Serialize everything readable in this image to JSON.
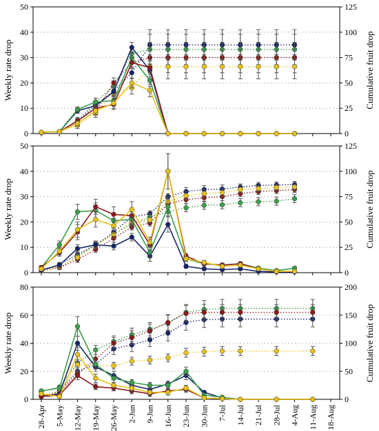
{
  "chart_data": [
    {
      "type": "line",
      "ylabel": "Weekly rate drop",
      "y2label": "Cumulative fruit drop",
      "ylim": [
        0,
        50
      ],
      "y2lim": [
        0,
        125
      ],
      "yticks": [
        "0",
        "10",
        "20",
        "30",
        "40",
        "50"
      ],
      "y2ticks": [
        "0",
        "25",
        "50",
        "75",
        "100",
        "125"
      ],
      "grid": "dotted",
      "x": [
        "28-Apr",
        "5-May",
        "12-May",
        "19-May",
        "26-May",
        "2-Jun",
        "9-Jun",
        "16-Jun",
        "23-Jun",
        "30-Jun",
        "7-Jul",
        "14-Jul",
        "21-Jul",
        "28-Jul",
        "4-Aug",
        "11-Aug",
        "18-Aug"
      ],
      "series": [
        {
          "color": "#16256b",
          "axis": "left",
          "style": "solid",
          "values": [
            0.5,
            0.8,
            9,
            11,
            16.5,
            34,
            25,
            0,
            0,
            0,
            0,
            0,
            0,
            0,
            0,
            null,
            null
          ],
          "errors": [
            0.3,
            0.3,
            1,
            1.5,
            2,
            2,
            2.5,
            0,
            0,
            0,
            0,
            0,
            0,
            0,
            0,
            null,
            null
          ]
        },
        {
          "color": "#3c9e4c",
          "axis": "left",
          "style": "solid",
          "values": [
            0.5,
            0.8,
            9.5,
            12.5,
            13,
            30,
            21,
            0,
            0,
            0,
            0,
            0,
            0,
            0,
            0,
            null,
            null
          ],
          "errors": [
            0.3,
            0.3,
            1,
            1.5,
            2,
            2,
            2.5,
            0,
            0,
            0,
            0,
            0,
            0,
            0,
            0,
            null,
            null
          ]
        },
        {
          "color": "#8b1a1a",
          "axis": "left",
          "style": "solid",
          "values": [
            0.5,
            0.8,
            5,
            10,
            11.5,
            28,
            26,
            0,
            0,
            0,
            0,
            0,
            0,
            0,
            0,
            null,
            null
          ],
          "errors": [
            0.3,
            0.3,
            1,
            1.5,
            2,
            2,
            2.5,
            0,
            0,
            0,
            0,
            0,
            0,
            0,
            0,
            null,
            null
          ]
        },
        {
          "color": "#e6c21a",
          "axis": "left",
          "style": "solid",
          "values": [
            0.5,
            0.8,
            4,
            9,
            12,
            20,
            17,
            0,
            0,
            0,
            0,
            0,
            0,
            0,
            0,
            null,
            null
          ],
          "errors": [
            0.3,
            0.3,
            1,
            1.5,
            2,
            2,
            2.5,
            0,
            0,
            0,
            0,
            0,
            0,
            0,
            0,
            null,
            null
          ]
        },
        {
          "color": "#16256b",
          "axis": "right",
          "style": "dotted",
          "values": [
            1,
            2,
            12,
            28,
            42,
            60,
            87.5,
            87.5,
            87.5,
            87.5,
            87.5,
            87.5,
            87.5,
            87.5,
            87.5,
            null,
            null
          ],
          "errors": [
            0.5,
            0.5,
            3,
            4,
            5,
            6,
            15,
            15,
            15,
            15,
            15,
            15,
            15,
            15,
            15,
            null,
            null
          ]
        },
        {
          "color": "#3c9e4c",
          "axis": "right",
          "style": "dotted",
          "values": [
            1,
            2,
            13,
            31,
            47,
            79,
            83,
            83,
            83,
            83,
            83,
            83,
            83,
            83,
            83,
            null,
            null
          ],
          "errors": [
            0.5,
            0.5,
            3,
            4,
            5,
            6,
            15,
            15,
            15,
            15,
            15,
            15,
            15,
            15,
            15,
            null,
            null
          ]
        },
        {
          "color": "#8b1a1a",
          "axis": "right",
          "style": "dotted",
          "values": [
            1,
            2,
            10,
            22,
            50,
            70,
            75,
            75,
            75,
            75,
            75,
            75,
            75,
            75,
            75,
            null,
            null
          ],
          "errors": [
            0.5,
            0.5,
            3,
            4,
            5,
            6,
            15,
            15,
            15,
            15,
            15,
            15,
            15,
            15,
            15,
            null,
            null
          ]
        },
        {
          "color": "#e6c21a",
          "axis": "right",
          "style": "dotted",
          "values": [
            1,
            2,
            8,
            20,
            40,
            45,
            66,
            66,
            66,
            66,
            66,
            66,
            66,
            66,
            66,
            null,
            null
          ],
          "errors": [
            0.5,
            0.5,
            3,
            4,
            5,
            6,
            12,
            12,
            12,
            12,
            12,
            12,
            12,
            12,
            12,
            null,
            null
          ]
        }
      ]
    },
    {
      "type": "line",
      "ylabel": "Weekly rate drop",
      "y2label": "Cumulative fruit drop",
      "ylim": [
        0,
        50
      ],
      "y2lim": [
        0,
        125
      ],
      "yticks": [
        "0",
        "10",
        "20",
        "30",
        "40",
        "50"
      ],
      "y2ticks": [
        "0",
        "25",
        "50",
        "75",
        "100",
        "125"
      ],
      "grid": "dotted",
      "x": [
        "28-Apr",
        "5-May",
        "12-May",
        "19-May",
        "26-May",
        "2-Jun",
        "9-Jun",
        "16-Jun",
        "23-Jun",
        "30-Jun",
        "7-Jul",
        "14-Jul",
        "21-Jul",
        "28-Jul",
        "4-Aug",
        "11-Aug",
        "18-Aug"
      ],
      "series": [
        {
          "color": "#16256b",
          "axis": "left",
          "style": "solid",
          "values": [
            1,
            3,
            9.5,
            11,
            10.5,
            14,
            6.5,
            19,
            2.5,
            1.5,
            1.2,
            1.5,
            0.5,
            0.3,
            0.3,
            null,
            null
          ],
          "errors": [
            0.5,
            1,
            1.5,
            1.5,
            1.5,
            1.5,
            2,
            3,
            0.8,
            0.5,
            0.5,
            0.5,
            0.3,
            0.3,
            0.3,
            null,
            null
          ]
        },
        {
          "color": "#3c9e4c",
          "axis": "left",
          "style": "solid",
          "values": [
            2,
            11,
            24,
            24.5,
            20.5,
            21,
            8,
            26,
            5.5,
            3.5,
            3,
            3.5,
            1.8,
            0.8,
            1.8,
            null,
            null
          ],
          "errors": [
            0.8,
            1.5,
            3,
            3,
            3,
            3,
            2,
            4,
            1,
            0.8,
            0.8,
            0.8,
            0.5,
            0.5,
            0.5,
            null,
            null
          ]
        },
        {
          "color": "#8b1a1a",
          "axis": "left",
          "style": "solid",
          "values": [
            2,
            8,
            16,
            26,
            23,
            22.5,
            11,
            40,
            6.5,
            3.5,
            3,
            3.5,
            1.5,
            0.5,
            0.5,
            null,
            null
          ],
          "errors": [
            0.8,
            1.5,
            3,
            3,
            3,
            3,
            2,
            7,
            1,
            0.8,
            0.8,
            0.8,
            0.5,
            0.5,
            0.5,
            null,
            null
          ]
        },
        {
          "color": "#e6c21a",
          "axis": "left",
          "style": "solid",
          "values": [
            1.5,
            8.5,
            17,
            21,
            18.5,
            25,
            12,
            40,
            5.5,
            4,
            2.5,
            3,
            1.5,
            0.5,
            0.5,
            null,
            null
          ],
          "errors": [
            0.8,
            1.5,
            3,
            3,
            3,
            3,
            2,
            7,
            1,
            0.8,
            0.8,
            0.8,
            0.5,
            0.5,
            0.5,
            null,
            null
          ]
        },
        {
          "color": "#16256b",
          "axis": "right",
          "style": "dotted",
          "values": [
            2,
            8,
            18,
            27,
            40,
            55,
            58,
            75,
            80,
            82,
            82.5,
            84.5,
            86,
            86.5,
            87,
            null,
            null
          ],
          "errors": [
            0.8,
            1.5,
            3,
            3,
            4,
            3,
            3,
            3,
            4,
            4,
            4,
            3,
            3,
            3,
            3,
            null,
            null
          ]
        },
        {
          "color": "#3c9e4c",
          "axis": "right",
          "style": "dotted",
          "values": [
            2,
            5,
            16,
            28,
            38,
            48,
            55,
            60,
            64,
            66.5,
            67,
            69,
            70,
            70.5,
            73,
            null,
            null
          ],
          "errors": [
            0.8,
            1.5,
            3,
            3,
            4,
            3,
            3,
            4,
            4,
            4,
            4,
            4,
            4,
            4,
            4,
            null,
            null
          ]
        },
        {
          "color": "#8b1a1a",
          "axis": "right",
          "style": "dotted",
          "values": [
            2,
            5,
            13,
            23,
            34,
            45,
            49,
            68,
            72,
            74,
            75,
            78,
            80,
            81,
            82,
            null,
            null
          ],
          "errors": [
            0.8,
            1.5,
            3,
            3,
            4,
            3,
            3,
            3,
            4,
            4,
            4,
            3,
            3,
            3,
            3,
            null,
            null
          ]
        },
        {
          "color": "#e6c21a",
          "axis": "right",
          "style": "dotted",
          "values": [
            2,
            6,
            15,
            27,
            38,
            50,
            52,
            70,
            76,
            78,
            79,
            82,
            83,
            84,
            84.5,
            null,
            null
          ],
          "errors": [
            0.8,
            1.5,
            3,
            3,
            4,
            3,
            3,
            3,
            4,
            4,
            4,
            3,
            3,
            3,
            3,
            null,
            null
          ]
        }
      ]
    },
    {
      "type": "line",
      "ylabel": "Weekly rate drop",
      "y2label": "Cumulative fruit drop",
      "ylim": [
        0,
        80
      ],
      "y2lim": [
        0,
        200
      ],
      "yticks": [
        "0",
        "20",
        "40",
        "60",
        "80"
      ],
      "y2ticks": [
        "0",
        "50",
        "100",
        "150",
        "200"
      ],
      "grid": "dotted",
      "x": [
        "28-Apr",
        "5-May",
        "12-May",
        "19-May",
        "26-May",
        "2-Jun",
        "9-Jun",
        "16-Jun",
        "23-Jun",
        "30-Jun",
        "7-Jul",
        "14-Jul",
        "21-Jul",
        "28-Jul",
        "4-Aug",
        "11-Aug",
        "18-Aug"
      ],
      "series": [
        {
          "color": "#16256b",
          "axis": "left",
          "style": "solid",
          "values": [
            2,
            4,
            40,
            23,
            17,
            10,
            7,
            11,
            17,
            5,
            1,
            0,
            null,
            0,
            null,
            0,
            null
          ],
          "errors": [
            0.8,
            1,
            5,
            3,
            3,
            2,
            2,
            2,
            3,
            1,
            0.5,
            0,
            null,
            0,
            null,
            0,
            null
          ]
        },
        {
          "color": "#3c9e4c",
          "axis": "left",
          "style": "solid",
          "values": [
            6,
            8,
            52,
            25,
            15,
            12,
            10,
            10,
            20,
            3,
            1.5,
            0,
            null,
            0,
            null,
            0,
            null
          ],
          "errors": [
            0.8,
            1,
            7,
            3,
            3,
            2,
            2,
            2,
            3,
            1,
            0.5,
            0,
            null,
            0,
            null,
            0,
            null
          ]
        },
        {
          "color": "#8b1a1a",
          "axis": "left",
          "style": "solid",
          "values": [
            2,
            3,
            17,
            9,
            8,
            6,
            4,
            6,
            7,
            1,
            0.5,
            0,
            null,
            0,
            null,
            0,
            null
          ],
          "errors": [
            0.8,
            1,
            3,
            2,
            2,
            2,
            2,
            2,
            2,
            1,
            0.5,
            0,
            null,
            0,
            null,
            0,
            null
          ]
        },
        {
          "color": "#e6c21a",
          "axis": "left",
          "style": "solid",
          "values": [
            4,
            2,
            32,
            15,
            10,
            8,
            5,
            5,
            8,
            1,
            0.5,
            0,
            null,
            0,
            null,
            0,
            null
          ],
          "errors": [
            0.8,
            1,
            5,
            3,
            2,
            2,
            2,
            2,
            2,
            1,
            0.5,
            0,
            null,
            0,
            null,
            0,
            null
          ]
        },
        {
          "color": "#16256b",
          "axis": "right",
          "style": "dotted",
          "values": [
            5,
            15,
            50,
            62,
            90,
            97,
            106,
            118,
            137,
            142,
            143,
            143,
            null,
            143,
            null,
            143,
            null
          ],
          "errors": [
            1,
            2,
            6,
            8,
            10,
            12,
            12,
            14,
            14,
            14,
            14,
            14,
            null,
            14,
            null,
            14,
            null
          ]
        },
        {
          "color": "#3c9e4c",
          "axis": "right",
          "style": "dotted",
          "values": [
            14,
            22,
            65,
            88,
            103,
            115,
            125,
            136,
            155,
            160,
            162,
            162,
            null,
            162,
            null,
            162,
            null
          ],
          "errors": [
            1,
            2,
            6,
            8,
            10,
            12,
            12,
            14,
            14,
            16,
            16,
            16,
            null,
            16,
            null,
            16,
            null
          ]
        },
        {
          "color": "#8b1a1a",
          "axis": "right",
          "style": "dotted",
          "values": [
            5,
            12,
            45,
            72,
            100,
            110,
            122,
            137,
            153,
            155,
            155,
            155,
            null,
            155,
            null,
            155,
            null
          ],
          "errors": [
            1,
            2,
            6,
            8,
            10,
            12,
            12,
            14,
            14,
            14,
            14,
            14,
            null,
            14,
            null,
            14,
            null
          ]
        },
        {
          "color": "#e6c21a",
          "axis": "right",
          "style": "dotted",
          "values": [
            8,
            12,
            62,
            60,
            60,
            68,
            70,
            74,
            83,
            85,
            86,
            86,
            null,
            86,
            null,
            86,
            null
          ],
          "errors": [
            1,
            2,
            6,
            6,
            6,
            7,
            7,
            7,
            8,
            8,
            8,
            8,
            null,
            8,
            null,
            8,
            null
          ]
        }
      ]
    }
  ]
}
